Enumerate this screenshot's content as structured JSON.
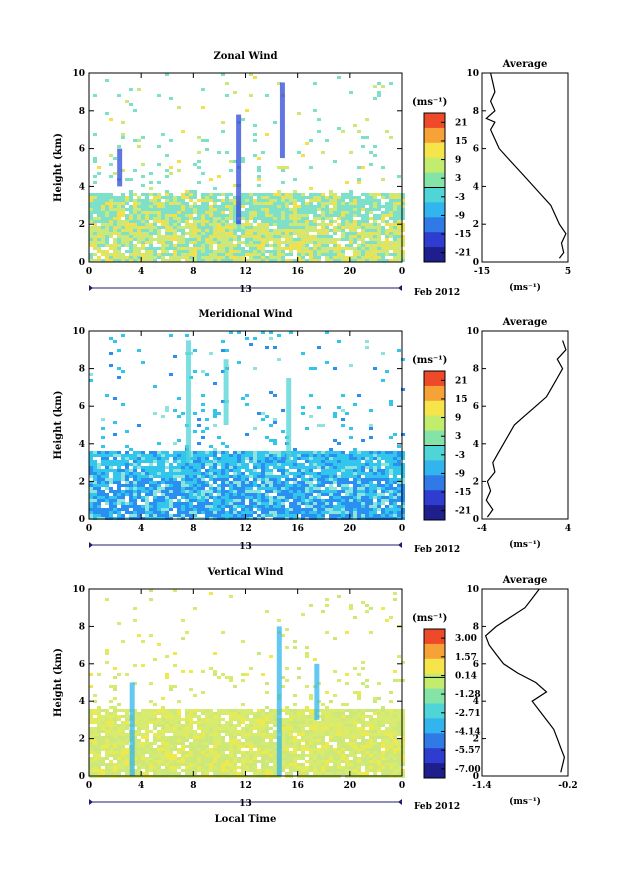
{
  "figure": {
    "date_label": "Feb 2012",
    "bottom_xlabel": "Local Time",
    "day_label": "13",
    "avg_title": "Average",
    "unit": "(ms⁻¹)"
  },
  "chart_data": [
    {
      "type": "heatmap",
      "name": "zonal",
      "title": "Zonal Wind",
      "ylabel": "Height (km)",
      "xlim": [
        0,
        24
      ],
      "ylim": [
        0,
        10
      ],
      "x_ticks": [
        "0",
        "4",
        "8",
        "12",
        "16",
        "20",
        "0"
      ],
      "y_ticks": [
        "0",
        "2",
        "4",
        "6",
        "8",
        "10"
      ],
      "colorbar": {
        "unit": "(ms⁻¹)",
        "ticks": [
          "21",
          "15",
          "9",
          "3",
          "-3",
          "-9",
          "-15",
          "-21"
        ],
        "min": -24,
        "max": 24
      },
      "colors": {
        "low": "#cde87a",
        "mid": "#7fe0c9",
        "high": "#f6e04a"
      },
      "profile": {
        "title": "Average",
        "xlim": [
          -15,
          5
        ],
        "x_ticks": [
          "-15",
          "5"
        ],
        "y_ticks": [
          "0",
          "2",
          "4",
          "6",
          "8",
          "10"
        ],
        "xlabel": "(ms⁻¹)",
        "points": [
          [
            3,
            0.2
          ],
          [
            4,
            0.5
          ],
          [
            3.5,
            1
          ],
          [
            4.5,
            1.5
          ],
          [
            3,
            2
          ],
          [
            2,
            2.5
          ],
          [
            1,
            3
          ],
          [
            -1,
            3.5
          ],
          [
            -3,
            4
          ],
          [
            -5,
            4.5
          ],
          [
            -7,
            5
          ],
          [
            -9,
            5.5
          ],
          [
            -11,
            6
          ],
          [
            -12,
            6.5
          ],
          [
            -13,
            7
          ],
          [
            -12,
            7.4
          ],
          [
            -14,
            7.6
          ],
          [
            -12,
            8
          ],
          [
            -13,
            8.5
          ],
          [
            -12,
            9
          ],
          [
            -12.5,
            9.5
          ],
          [
            -13,
            10
          ]
        ]
      }
    },
    {
      "type": "heatmap",
      "name": "meridional",
      "title": "Meridional Wind",
      "ylabel": "Height (km)",
      "xlim": [
        0,
        24
      ],
      "ylim": [
        0,
        10
      ],
      "x_ticks": [
        "0",
        "4",
        "8",
        "12",
        "16",
        "20",
        "0"
      ],
      "y_ticks": [
        "0",
        "2",
        "4",
        "6",
        "8",
        "10"
      ],
      "colorbar": {
        "unit": "(ms⁻¹)",
        "ticks": [
          "21",
          "15",
          "9",
          "3",
          "-3",
          "-9",
          "-15",
          "-21"
        ],
        "min": -24,
        "max": 24
      },
      "colors": {
        "low": "#2a8ff0",
        "mid": "#33c6ec",
        "high": "#8ee4dc"
      },
      "profile": {
        "title": "Average",
        "xlim": [
          -4,
          4
        ],
        "x_ticks": [
          "-4",
          "4"
        ],
        "y_ticks": [
          "0",
          "2",
          "4",
          "6",
          "8",
          "10"
        ],
        "xlabel": "(ms⁻¹)",
        "points": [
          [
            -3.5,
            0.1
          ],
          [
            -3,
            0.5
          ],
          [
            -3.6,
            1
          ],
          [
            -3.2,
            1.5
          ],
          [
            -3.5,
            2
          ],
          [
            -2.8,
            2.5
          ],
          [
            -3,
            3
          ],
          [
            -2.5,
            3.5
          ],
          [
            -2,
            4
          ],
          [
            -1.5,
            4.5
          ],
          [
            -1,
            5
          ],
          [
            0,
            5.5
          ],
          [
            1,
            6
          ],
          [
            2,
            6.5
          ],
          [
            2.5,
            7
          ],
          [
            3,
            7.5
          ],
          [
            3.5,
            8
          ],
          [
            3,
            8.5
          ],
          [
            3.8,
            9
          ],
          [
            3.5,
            9.5
          ]
        ]
      }
    },
    {
      "type": "heatmap",
      "name": "vertical",
      "title": "Vertical Wind",
      "ylabel": "Height (km)",
      "xlabel": "Local Time",
      "xlim": [
        0,
        24
      ],
      "ylim": [
        0,
        10
      ],
      "x_ticks": [
        "0",
        "4",
        "8",
        "12",
        "16",
        "20",
        "0"
      ],
      "y_ticks": [
        "0",
        "2",
        "4",
        "6",
        "8",
        "10"
      ],
      "colorbar": {
        "unit": "(ms⁻¹)",
        "ticks": [
          "3.00",
          "1.57",
          "0.14",
          "-1.28",
          "-2.71",
          "-4.14",
          "-5.57",
          "-7.00"
        ],
        "min": -7.7,
        "max": 3.7
      },
      "colors": {
        "low": "#cde87a",
        "mid": "#d6eb70",
        "high": "#f0e94a"
      },
      "profile": {
        "title": "Average",
        "xlim": [
          -1.4,
          -0.2
        ],
        "x_ticks": [
          "-1.4",
          "-0.2"
        ],
        "y_ticks": [
          "0",
          "2",
          "4",
          "6",
          "8",
          "10"
        ],
        "xlabel": "(ms⁻¹)",
        "points": [
          [
            -0.3,
            0.2
          ],
          [
            -0.25,
            1
          ],
          [
            -0.3,
            1.5
          ],
          [
            -0.35,
            2
          ],
          [
            -0.4,
            2.5
          ],
          [
            -0.5,
            3
          ],
          [
            -0.6,
            3.5
          ],
          [
            -0.7,
            4
          ],
          [
            -0.5,
            4.5
          ],
          [
            -0.65,
            5
          ],
          [
            -0.9,
            5.5
          ],
          [
            -1.1,
            6
          ],
          [
            -1.2,
            6.5
          ],
          [
            -1.3,
            7
          ],
          [
            -1.35,
            7.5
          ],
          [
            -1.2,
            8
          ],
          [
            -1.0,
            8.5
          ],
          [
            -0.8,
            9
          ],
          [
            -0.7,
            9.5
          ],
          [
            -0.6,
            10
          ]
        ]
      }
    }
  ]
}
